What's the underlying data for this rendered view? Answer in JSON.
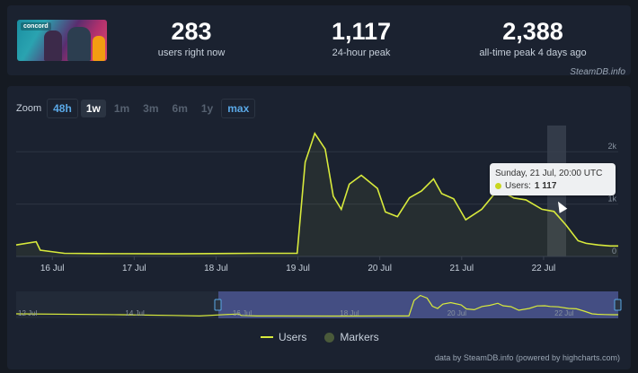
{
  "stats": {
    "thumbnail_logo": "concord",
    "items": [
      {
        "value": "283",
        "label": "users right now"
      },
      {
        "value": "1,117",
        "label": "24-hour peak"
      },
      {
        "value": "2,388",
        "label": "all-time peak 4 days ago"
      }
    ],
    "brand": "SteamDB.info"
  },
  "zoom": {
    "label": "Zoom",
    "options": [
      "48h",
      "1w",
      "1m",
      "3m",
      "6m",
      "1y",
      "max"
    ],
    "active": "1w"
  },
  "legend": {
    "users": "Users",
    "markers": "Markers"
  },
  "credit": "data by SteamDB.info (powered by highcharts.com)",
  "tooltip": {
    "time": "Sunday, 21 Jul, 20:00 UTC",
    "series": "Users:",
    "value": "1 117"
  },
  "colors": {
    "line": "#d8ea3c",
    "accent": "#5aa8e6",
    "navigator_fill": "#4a5590"
  },
  "chart_data": {
    "type": "line",
    "x_tick_labels": [
      "16 Jul",
      "17 Jul",
      "18 Jul",
      "19 Jul",
      "20 Jul",
      "21 Jul",
      "22 Jul"
    ],
    "y_tick_labels": [
      "0",
      "1k",
      "2k"
    ],
    "ylim": [
      0,
      2500
    ],
    "grid": true,
    "series": [
      {
        "name": "Users",
        "x": [
          0,
          0.25,
          0.3,
          0.6,
          1.0,
          2.0,
          3.0,
          3.5,
          3.6,
          3.72,
          3.85,
          3.95,
          4.05,
          4.15,
          4.3,
          4.5,
          4.6,
          4.75,
          4.9,
          5.05,
          5.2,
          5.3,
          5.45,
          5.6,
          5.8,
          5.95,
          6.1,
          6.2,
          6.35,
          6.55,
          6.7,
          6.85,
          7.0,
          7.1,
          7.25,
          7.4,
          7.5
        ],
        "y": [
          220,
          280,
          120,
          60,
          55,
          50,
          60,
          60,
          1800,
          2350,
          2050,
          1150,
          900,
          1380,
          1550,
          1300,
          850,
          760,
          1120,
          1250,
          1480,
          1200,
          1100,
          700,
          900,
          1180,
          1200,
          1117,
          1080,
          900,
          860,
          600,
          300,
          250,
          220,
          200,
          200
        ]
      }
    ],
    "navigator": {
      "x_tick_labels": [
        "12 Jul",
        "14 Jul",
        "16 Jul",
        "18 Jul",
        "20 Jul",
        "22 Jul"
      ]
    }
  }
}
